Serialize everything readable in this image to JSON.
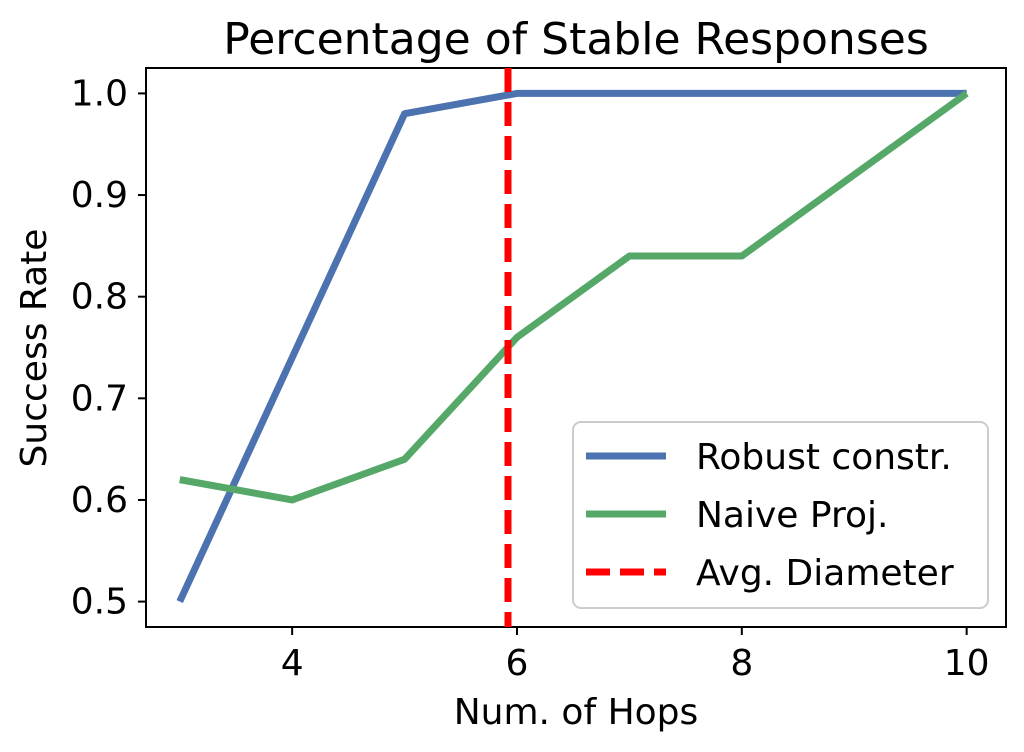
{
  "chart_data": {
    "type": "line",
    "title": "Percentage of Stable Responses",
    "xlabel": "Num. of Hops",
    "ylabel": "Success Rate",
    "xlim": [
      2.7,
      10.35
    ],
    "ylim": [
      0.475,
      1.025
    ],
    "xticks": [
      4,
      6,
      8,
      10
    ],
    "yticks": [
      0.5,
      0.6,
      0.7,
      0.8,
      0.9,
      1.0
    ],
    "xtick_labels": [
      "4",
      "6",
      "8",
      "10"
    ],
    "ytick_labels": [
      "0.5",
      "0.6",
      "0.7",
      "0.8",
      "0.9",
      "1.0"
    ],
    "grid": false,
    "legend_position": "lower-right",
    "series": [
      {
        "name": "Robust constr.",
        "color": "#4c72b0",
        "style": "solid",
        "x": [
          3,
          4,
          5,
          6,
          7,
          8,
          9,
          10
        ],
        "y": [
          0.5,
          0.74,
          0.98,
          1.0,
          1.0,
          1.0,
          1.0,
          1.0
        ]
      },
      {
        "name": "Naive Proj.",
        "color": "#55a868",
        "style": "solid",
        "x": [
          3,
          4,
          5,
          6,
          7,
          8,
          9,
          10
        ],
        "y": [
          0.62,
          0.6,
          0.64,
          0.76,
          0.84,
          0.84,
          0.92,
          1.0
        ]
      }
    ],
    "reference_lines": [
      {
        "name": "Avg. Diameter",
        "orientation": "vertical",
        "x": 5.92,
        "color": "#ff0000",
        "style": "dashed"
      }
    ]
  }
}
